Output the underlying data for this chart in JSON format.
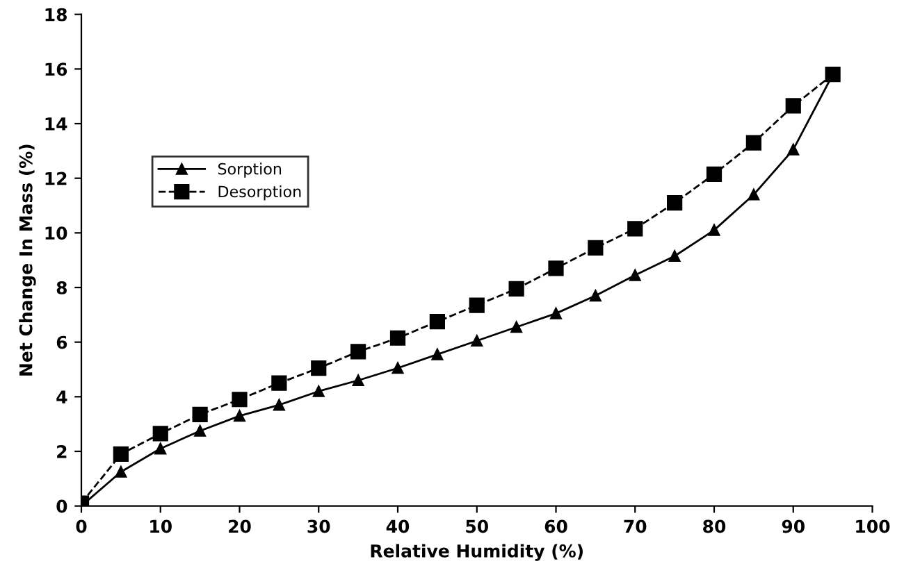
{
  "chart_data": {
    "type": "line",
    "xlabel": "Relative Humidity (%)",
    "ylabel": "Net Change In Mass (%)",
    "x": [
      0,
      5,
      10,
      15,
      20,
      25,
      30,
      35,
      40,
      45,
      50,
      55,
      60,
      65,
      70,
      75,
      80,
      85,
      90,
      95
    ],
    "series": [
      {
        "name": "Sorption",
        "color": "#000000",
        "marker": "triangle",
        "line_style": "solid",
        "values": [
          0,
          1.25,
          2.1,
          2.75,
          3.3,
          3.7,
          4.2,
          4.6,
          5.05,
          5.55,
          6.05,
          6.55,
          7.05,
          7.7,
          8.45,
          9.15,
          10.1,
          11.4,
          13.05,
          15.8
        ]
      },
      {
        "name": "Desorption",
        "color": "#000000",
        "marker": "square",
        "line_style": "dashed",
        "values": [
          0.1,
          1.9,
          2.65,
          3.35,
          3.9,
          4.5,
          5.05,
          5.65,
          6.15,
          6.75,
          7.35,
          7.95,
          8.7,
          9.45,
          10.15,
          11.1,
          12.15,
          13.3,
          14.65,
          15.8
        ]
      }
    ],
    "xlim": [
      0,
      100
    ],
    "xticks": [
      0,
      10,
      20,
      30,
      40,
      50,
      60,
      70,
      80,
      90,
      100
    ],
    "ylim": [
      0,
      18
    ],
    "yticks": [
      0,
      2,
      4,
      6,
      8,
      10,
      12,
      14,
      16,
      18
    ],
    "grid": false,
    "legend": "left"
  }
}
